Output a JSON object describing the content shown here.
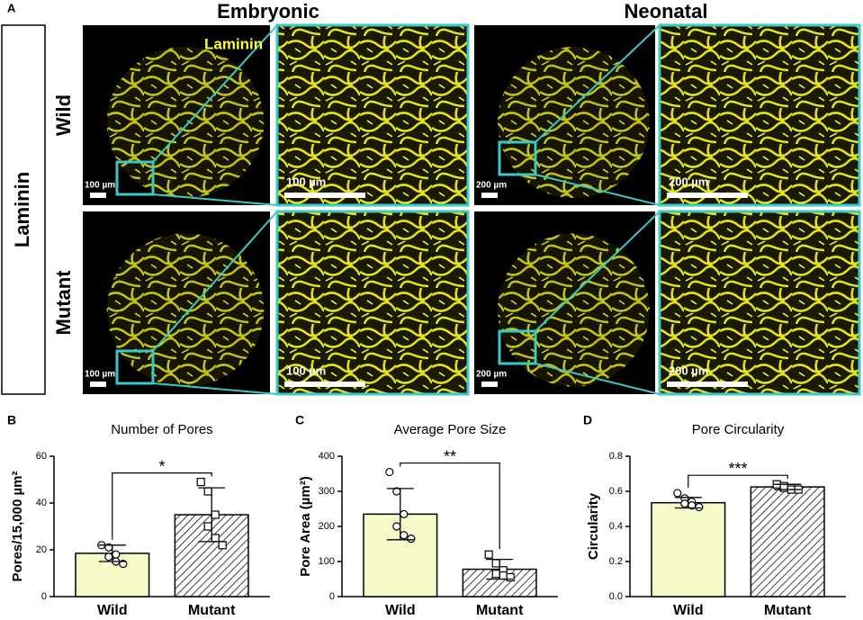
{
  "panel_a": {
    "label": "A",
    "columns": [
      "Embryonic",
      "Neonatal"
    ],
    "row_group": "Laminin",
    "rows": [
      "Wild",
      "Mutant"
    ],
    "stain": "Laminin",
    "scale_bars": [
      [
        "100 µm",
        "100 µm",
        "200 µm",
        "200 µm"
      ],
      [
        "100 µm",
        "100 µm",
        "200 µm",
        "200 µm"
      ]
    ]
  },
  "chart_data": [
    {
      "type": "bar",
      "panel": "B",
      "title": "Number of Pores",
      "ylabel": "Pores/15,000 µm²",
      "categories": [
        "Wild",
        "Mutant"
      ],
      "values": [
        18.5,
        35
      ],
      "errors": [
        3.5,
        11.5
      ],
      "points": [
        [
          22,
          21,
          18,
          17,
          15,
          14
        ],
        [
          49,
          45,
          35,
          30,
          25,
          22
        ]
      ],
      "bar_colors": [
        "#f5fac8",
        "#ffffff"
      ],
      "hatch": [
        false,
        true
      ],
      "markers": [
        "circle",
        "square"
      ],
      "significance": "*",
      "ylim": [
        0,
        60
      ],
      "yticks": [
        0,
        20,
        40,
        60
      ]
    },
    {
      "type": "bar",
      "panel": "C",
      "title": "Average Pore Size",
      "ylabel": "Pore Area (µm²)",
      "categories": [
        "Wild",
        "Mutant"
      ],
      "values": [
        235,
        78
      ],
      "errors": [
        73,
        28
      ],
      "points": [
        [
          355,
          300,
          235,
          200,
          175,
          165
        ],
        [
          120,
          95,
          75,
          65,
          60,
          55
        ]
      ],
      "bar_colors": [
        "#f5fac8",
        "#ffffff"
      ],
      "hatch": [
        false,
        true
      ],
      "markers": [
        "circle",
        "square"
      ],
      "significance": "**",
      "ylim": [
        0,
        400
      ],
      "yticks": [
        0,
        100,
        200,
        300,
        400
      ]
    },
    {
      "type": "bar",
      "panel": "D",
      "title": "Pore Circularity",
      "ylabel": "Circularity",
      "categories": [
        "Wild",
        "Mutant"
      ],
      "values": [
        0.535,
        0.625
      ],
      "errors": [
        0.03,
        0.015
      ],
      "points": [
        [
          0.59,
          0.56,
          0.54,
          0.53,
          0.52,
          0.51
        ],
        [
          0.64,
          0.63,
          0.62,
          0.62,
          0.61,
          0.61
        ]
      ],
      "bar_colors": [
        "#f5fac8",
        "#ffffff"
      ],
      "hatch": [
        false,
        true
      ],
      "markers": [
        "circle",
        "square"
      ],
      "significance": "***",
      "ylim": [
        0,
        0.8
      ],
      "yticks": [
        {
          "value": 0,
          "label": "0.0"
        },
        0.2,
        0.4,
        0.6,
        0.8
      ]
    }
  ]
}
